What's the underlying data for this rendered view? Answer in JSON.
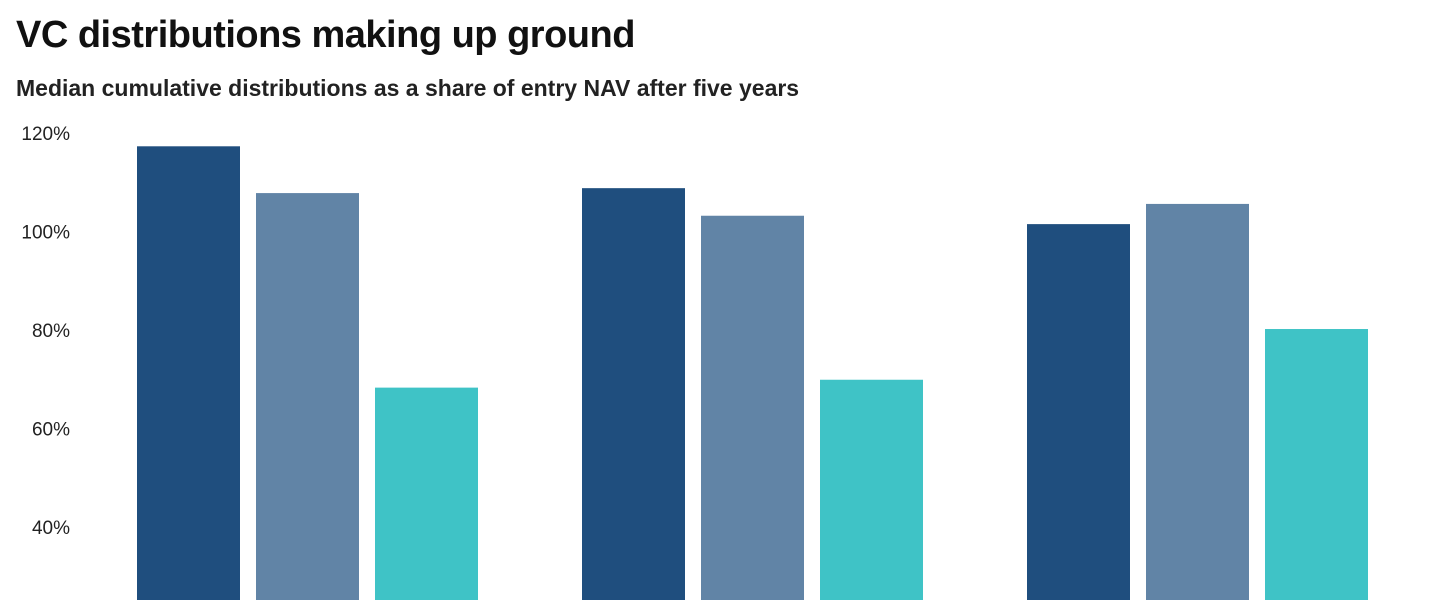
{
  "chart_data": {
    "type": "bar",
    "title": "VC distributions making up ground",
    "subtitle": "Median cumulative distributions as a share of entry NAV after five years",
    "xlabel": "",
    "ylabel": "",
    "y_ticks": [
      "40%",
      "60%",
      "80%",
      "100%",
      "120%"
    ],
    "y_tick_values": [
      40,
      60,
      80,
      100,
      120
    ],
    "ylim": [
      25,
      120
    ],
    "grid": false,
    "groups": 3,
    "series": [
      {
        "values": [
          117.3,
          108.8,
          101.5
        ],
        "color": "#1f4e7e"
      },
      {
        "values": [
          107.8,
          103.2,
          105.6
        ],
        "color": "#6184a6"
      },
      {
        "values": [
          68.3,
          69.9,
          80.2
        ],
        "color": "#3fc3c6"
      }
    ]
  }
}
